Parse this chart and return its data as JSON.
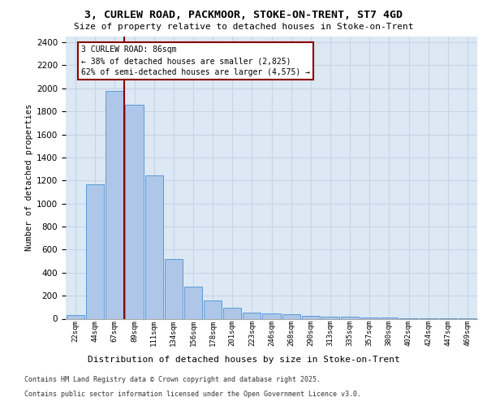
{
  "title_line1": "3, CURLEW ROAD, PACKMOOR, STOKE-ON-TRENT, ST7 4GD",
  "title_line2": "Size of property relative to detached houses in Stoke-on-Trent",
  "xlabel": "Distribution of detached houses by size in Stoke-on-Trent",
  "ylabel": "Number of detached properties",
  "categories": [
    "22sqm",
    "44sqm",
    "67sqm",
    "89sqm",
    "111sqm",
    "134sqm",
    "156sqm",
    "178sqm",
    "201sqm",
    "223sqm",
    "246sqm",
    "268sqm",
    "290sqm",
    "313sqm",
    "335sqm",
    "357sqm",
    "380sqm",
    "402sqm",
    "424sqm",
    "447sqm",
    "469sqm"
  ],
  "values": [
    30,
    1170,
    1980,
    1855,
    1245,
    515,
    275,
    158,
    93,
    52,
    43,
    38,
    22,
    20,
    15,
    12,
    8,
    5,
    3,
    5,
    2
  ],
  "bar_color": "#aec6e8",
  "bar_edge_color": "#5b9bd5",
  "vline_color": "#8b0000",
  "vline_x": 2.5,
  "annotation_text_line1": "3 CURLEW ROAD: 86sqm",
  "annotation_text_line2": "← 38% of detached houses are smaller (2,825)",
  "annotation_text_line3": "62% of semi-detached houses are larger (4,575) →",
  "annotation_box_edge_color": "#8b0000",
  "grid_color": "#c8d4e8",
  "bg_color": "#dce8f4",
  "footnote_line1": "Contains HM Land Registry data © Crown copyright and database right 2025.",
  "footnote_line2": "Contains public sector information licensed under the Open Government Licence v3.0.",
  "ylim": [
    0,
    2450
  ],
  "yticks": [
    0,
    200,
    400,
    600,
    800,
    1000,
    1200,
    1400,
    1600,
    1800,
    2000,
    2200,
    2400
  ]
}
